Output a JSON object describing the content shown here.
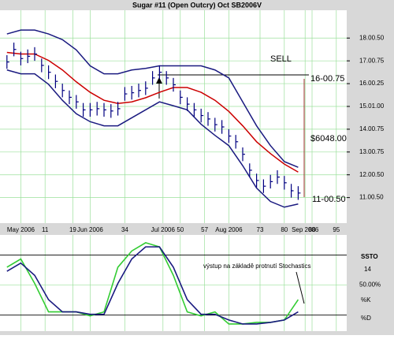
{
  "chart_data": [
    {
      "type": "ohlc",
      "title": "Sugar #11 (Open Outcry) Oct SB2006V",
      "x": [
        0,
        2,
        4,
        6,
        8,
        10,
        12,
        14,
        16,
        18,
        20,
        22,
        24,
        26,
        28,
        30,
        32,
        34,
        36,
        38,
        40,
        42,
        44,
        46,
        48,
        50,
        52,
        54,
        56,
        58,
        60,
        62,
        64,
        66,
        68,
        70,
        72,
        74,
        76,
        78,
        80,
        82,
        84
      ],
      "high": [
        17.25,
        17.8,
        17.4,
        17.5,
        17.6,
        17.1,
        16.8,
        16.4,
        16.0,
        15.7,
        15.5,
        15.15,
        15.15,
        15.2,
        15.15,
        15.1,
        15.2,
        15.85,
        15.9,
        16.0,
        16.1,
        16.55,
        16.8,
        16.55,
        16.25,
        15.7,
        15.4,
        15.15,
        14.9,
        14.75,
        14.5,
        14.4,
        14.0,
        13.75,
        13.2,
        12.5,
        12.05,
        11.8,
        12.0,
        12.2,
        11.95,
        11.6,
        11.5
      ],
      "low": [
        16.65,
        17.2,
        16.8,
        16.9,
        17.0,
        16.5,
        16.2,
        15.8,
        15.4,
        15.1,
        14.9,
        14.55,
        14.55,
        14.6,
        14.55,
        14.5,
        14.6,
        15.25,
        15.3,
        15.4,
        15.5,
        15.95,
        16.2,
        15.95,
        15.65,
        15.1,
        14.8,
        14.55,
        14.3,
        14.15,
        13.9,
        13.8,
        13.4,
        13.15,
        12.6,
        11.9,
        11.45,
        11.2,
        11.4,
        11.6,
        11.35,
        11.0,
        10.9
      ],
      "close": [
        16.95,
        17.5,
        17.1,
        17.2,
        17.3,
        16.8,
        16.5,
        16.1,
        15.7,
        15.4,
        15.2,
        14.85,
        14.85,
        14.9,
        14.85,
        14.8,
        14.9,
        15.55,
        15.6,
        15.7,
        15.8,
        16.25,
        16.5,
        16.25,
        15.95,
        15.4,
        15.1,
        14.85,
        14.6,
        14.45,
        14.2,
        14.1,
        13.7,
        13.45,
        12.9,
        12.2,
        11.75,
        11.5,
        11.7,
        11.9,
        11.65,
        11.3,
        11.2
      ],
      "color": "#000080",
      "bands": {
        "x": [
          0,
          4,
          8,
          12,
          16,
          20,
          24,
          28,
          32,
          36,
          40,
          44,
          48,
          52,
          56,
          60,
          64,
          68,
          72,
          76,
          80,
          84
        ],
        "series": [
          {
            "color": "#1a1a80",
            "values": [
              18.18,
              18.35,
              18.35,
              18.18,
              17.93,
              17.48,
              16.78,
              16.43,
              16.43,
              16.6,
              16.67,
              16.78,
              16.78,
              16.78,
              16.78,
              16.6,
              16.25,
              15.2,
              14.15,
              13.28,
              12.58,
              12.33
            ]
          },
          {
            "color": "#cc0000",
            "values": [
              17.37,
              17.3,
              17.3,
              17.02,
              16.6,
              16.08,
              15.62,
              15.27,
              15.13,
              15.2,
              15.38,
              15.62,
              15.83,
              15.83,
              15.62,
              15.27,
              14.78,
              14.15,
              13.45,
              12.93,
              12.47,
              12.12
            ]
          },
          {
            "color": "#1a1a80",
            "values": [
              16.6,
              16.43,
              16.43,
              15.97,
              15.27,
              14.68,
              14.33,
              14.15,
              14.15,
              14.5,
              14.85,
              15.2,
              15.03,
              14.85,
              14.22,
              13.73,
              13.28,
              12.4,
              11.42,
              10.83,
              10.58,
              10.72
            ]
          }
        ]
      },
      "xlim": [
        -2,
        98
      ],
      "xticks": [
        {
          "value": 4,
          "label": "May 2006"
        },
        11,
        19,
        {
          "value": 24,
          "label": "Jun 2006"
        },
        34,
        {
          "value": 45,
          "label": "Jul 2006"
        },
        50,
        57,
        {
          "value": 64,
          "label": "Aug 2006"
        },
        73,
        80,
        {
          "value": 86,
          "label": "Sep 2006"
        },
        88,
        95
      ],
      "ylim": [
        9.88,
        19.22
      ],
      "yticks": [
        {
          "value": 18,
          "label": "18.00.50"
        },
        {
          "value": 17,
          "label": "17.00.75"
        },
        {
          "value": 16,
          "label": "16.00.25"
        },
        {
          "value": 15,
          "label": "15.01.00"
        },
        {
          "value": 14,
          "label": "14.00.75"
        },
        {
          "value": 13,
          "label": "13.00.75"
        },
        {
          "value": 12,
          "label": "12.00.50"
        },
        {
          "value": 11,
          "label": "11.00.50"
        }
      ],
      "grid": true,
      "annotations": [
        "SELL",
        "16-00.75",
        "$6048.00",
        "11-00.50"
      ]
    },
    {
      "type": "line",
      "panel_label": "SSTO",
      "period": 14,
      "annotation": "výstup na základě protnutí Stochastics",
      "x": [
        0,
        4,
        8,
        12,
        16,
        20,
        24,
        28,
        32,
        36,
        40,
        44,
        48,
        52,
        56,
        60,
        64,
        68,
        72,
        76,
        80,
        84
      ],
      "series": [
        {
          "name": "%K",
          "color": "#33cc33",
          "values": [
            67.8,
            76,
            51.6,
            23.2,
            23.2,
            23.2,
            19.2,
            23.2,
            67.8,
            84,
            92.2,
            88.1,
            59.7,
            23.2,
            19.2,
            23.2,
            11.1,
            11.1,
            12.7,
            12.7,
            15.1,
            35.4
          ]
        },
        {
          "name": "%D",
          "color": "#1a1a80",
          "values": [
            63.8,
            71.9,
            59.7,
            35.4,
            23.2,
            23.2,
            20.8,
            20.8,
            51.6,
            76,
            88.1,
            88.1,
            67.8,
            35.4,
            20.8,
            20.8,
            15.1,
            11.1,
            11.1,
            12.7,
            15.1,
            23.2
          ]
        }
      ],
      "xlim": [
        -2,
        98
      ],
      "ylim": [
        4,
        100
      ],
      "yticks": [
        {
          "value": 50,
          "label": "50.00%"
        }
      ],
      "levels": [
        80,
        20
      ]
    }
  ]
}
